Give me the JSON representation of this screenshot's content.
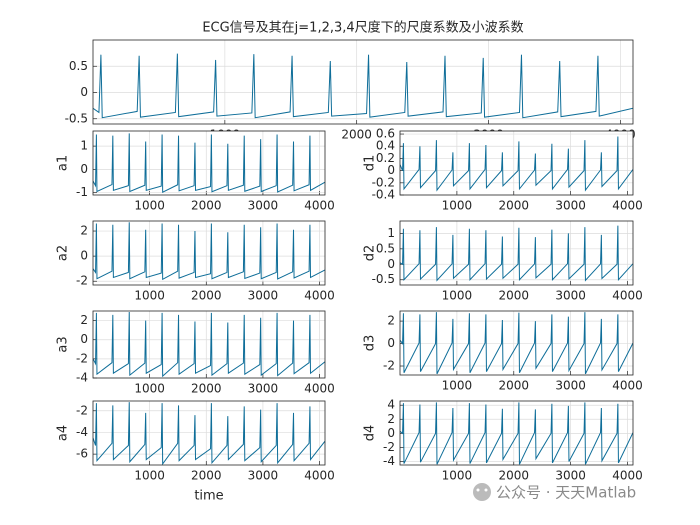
{
  "chart_data": [
    {
      "type": "line",
      "title": "ECG信号及其在j=1,2,3,4尺度下的尺度系数及小波系数",
      "color": "#0f6e99",
      "grid": true,
      "xlim": [
        0,
        4096
      ],
      "ylim": [
        -0.6,
        1
      ],
      "xticks": [
        1000,
        2000,
        3000,
        4000
      ],
      "yticks": [
        -0.5,
        0,
        0.5
      ],
      "x": [
        0,
        45,
        60,
        70,
        335,
        350,
        360,
        625,
        640,
        650,
        915,
        930,
        940,
        1205,
        1220,
        1230,
        1495,
        1510,
        1520,
        1785,
        1800,
        1810,
        2075,
        2090,
        2100,
        2365,
        2380,
        2390,
        2655,
        2670,
        2680,
        2945,
        2960,
        2970,
        3235,
        3250,
        3260,
        3525,
        3540,
        3550,
        3815,
        3830,
        3840,
        4096
      ],
      "values": [
        -0.3,
        -0.38,
        0.72,
        -0.48,
        -0.36,
        0.7,
        -0.47,
        -0.38,
        0.74,
        -0.46,
        -0.37,
        0.62,
        -0.45,
        -0.39,
        0.73,
        -0.48,
        -0.37,
        0.7,
        -0.46,
        -0.38,
        0.6,
        -0.45,
        -0.4,
        0.72,
        -0.47,
        -0.38,
        0.58,
        -0.45,
        -0.37,
        0.7,
        -0.46,
        -0.39,
        0.66,
        -0.47,
        -0.38,
        0.72,
        -0.48,
        -0.37,
        0.6,
        -0.46,
        -0.36,
        0.7,
        -0.45,
        -0.3
      ]
    },
    {
      "type": "line",
      "ylabel": "a1",
      "color": "#0f6e99",
      "grid": true,
      "xlim": [
        0,
        4096
      ],
      "ylim": [
        -1.1,
        1.65
      ],
      "xticks": [
        1000,
        2000,
        3000,
        4000
      ],
      "yticks": [
        -1,
        0,
        1
      ],
      "x": [
        0,
        45,
        60,
        70,
        335,
        350,
        360,
        625,
        640,
        650,
        915,
        930,
        940,
        1205,
        1220,
        1230,
        1495,
        1510,
        1520,
        1785,
        1800,
        1810,
        2075,
        2090,
        2100,
        2365,
        2380,
        2390,
        2655,
        2670,
        2680,
        2945,
        2960,
        2970,
        3235,
        3250,
        3260,
        3525,
        3540,
        3550,
        3815,
        3830,
        3840,
        4096
      ],
      "values": [
        -0.5,
        -0.7,
        1.5,
        -0.95,
        -0.65,
        1.45,
        -0.9,
        -0.7,
        1.55,
        -0.95,
        -0.68,
        1.2,
        -0.9,
        -0.72,
        1.5,
        -0.98,
        -0.66,
        1.45,
        -0.92,
        -0.7,
        1.15,
        -0.9,
        -0.74,
        1.5,
        -0.96,
        -0.7,
        1.1,
        -0.9,
        -0.68,
        1.45,
        -0.94,
        -0.72,
        1.3,
        -0.95,
        -0.7,
        1.5,
        -0.97,
        -0.68,
        1.2,
        -0.92,
        -0.66,
        1.45,
        -0.9,
        -0.55
      ]
    },
    {
      "type": "line",
      "ylabel": "d1",
      "color": "#0f6e99",
      "grid": true,
      "xlim": [
        0,
        4096
      ],
      "ylim": [
        -0.4,
        0.65
      ],
      "xticks": [
        1000,
        2000,
        3000,
        4000
      ],
      "yticks": [
        -0.4,
        -0.2,
        0,
        0.2,
        0.4,
        0.6
      ],
      "x": [
        0,
        45,
        60,
        70,
        335,
        350,
        360,
        625,
        640,
        650,
        915,
        930,
        940,
        1205,
        1220,
        1230,
        1495,
        1510,
        1520,
        1785,
        1800,
        1810,
        2075,
        2090,
        2100,
        2365,
        2380,
        2390,
        2655,
        2670,
        2680,
        2945,
        2960,
        2970,
        3235,
        3250,
        3260,
        3525,
        3540,
        3550,
        3815,
        3830,
        3840,
        4096
      ],
      "values": [
        0.1,
        0,
        0.45,
        -0.3,
        0.02,
        0.4,
        -0.28,
        0,
        0.5,
        -0.32,
        0.01,
        0.3,
        -0.25,
        0,
        0.45,
        -0.3,
        0.02,
        0.42,
        -0.28,
        0,
        0.3,
        -0.25,
        0,
        0.48,
        -0.3,
        0.01,
        0.28,
        -0.24,
        0,
        0.44,
        -0.3,
        0.02,
        0.36,
        -0.27,
        0,
        0.5,
        -0.32,
        0.01,
        0.3,
        -0.26,
        0,
        0.56,
        -0.3,
        0.02
      ]
    },
    {
      "type": "line",
      "ylabel": "a2",
      "color": "#0f6e99",
      "grid": true,
      "xlim": [
        0,
        4096
      ],
      "ylim": [
        -2.3,
        2.8
      ],
      "xticks": [
        1000,
        2000,
        3000,
        4000
      ],
      "yticks": [
        -2,
        0,
        2
      ],
      "x": [
        0,
        45,
        60,
        70,
        335,
        350,
        360,
        625,
        640,
        650,
        915,
        930,
        940,
        1205,
        1220,
        1230,
        1495,
        1510,
        1520,
        1785,
        1800,
        1810,
        2075,
        2090,
        2100,
        2365,
        2380,
        2390,
        2655,
        2670,
        2680,
        2945,
        2960,
        2970,
        3235,
        3250,
        3260,
        3525,
        3540,
        3550,
        3815,
        3830,
        3840,
        4096
      ],
      "values": [
        -1,
        -1.3,
        2.6,
        -1.8,
        -1.2,
        2.5,
        -1.7,
        -1.3,
        2.7,
        -1.8,
        -1.25,
        2.1,
        -1.7,
        -1.35,
        2.6,
        -1.85,
        -1.2,
        2.5,
        -1.75,
        -1.3,
        2.0,
        -1.7,
        -1.4,
        2.6,
        -1.8,
        -1.3,
        1.9,
        -1.7,
        -1.25,
        2.5,
        -1.78,
        -1.35,
        2.3,
        -1.8,
        -1.3,
        2.6,
        -1.82,
        -1.25,
        2.1,
        -1.74,
        -1.2,
        2.5,
        -1.7,
        -1.1
      ]
    },
    {
      "type": "line",
      "ylabel": "d2",
      "color": "#0f6e99",
      "grid": true,
      "xlim": [
        0,
        4096
      ],
      "ylim": [
        -0.67,
        1.4
      ],
      "xticks": [
        1000,
        2000,
        3000,
        4000
      ],
      "yticks": [
        -0.5,
        0,
        0.5,
        1
      ],
      "x": [
        0,
        45,
        60,
        70,
        335,
        350,
        360,
        625,
        640,
        650,
        915,
        930,
        940,
        1205,
        1220,
        1230,
        1495,
        1510,
        1520,
        1785,
        1800,
        1810,
        2075,
        2090,
        2100,
        2365,
        2380,
        2390,
        2655,
        2670,
        2680,
        2945,
        2960,
        2970,
        3235,
        3250,
        3260,
        3525,
        3540,
        3550,
        3815,
        3830,
        3840,
        4096
      ],
      "values": [
        0.05,
        0,
        1.15,
        -0.5,
        0.02,
        1.1,
        -0.48,
        0,
        1.2,
        -0.52,
        0.01,
        0.95,
        -0.45,
        0,
        1.15,
        -0.5,
        0.02,
        1.1,
        -0.48,
        0,
        0.9,
        -0.45,
        0,
        1.18,
        -0.5,
        0.01,
        0.88,
        -0.44,
        0,
        1.12,
        -0.5,
        0.02,
        1.0,
        -0.47,
        0,
        1.2,
        -0.52,
        0.01,
        0.95,
        -0.46,
        0,
        1.25,
        -0.5,
        0.02
      ]
    },
    {
      "type": "line",
      "ylabel": "a3",
      "color": "#0f6e99",
      "grid": true,
      "xlim": [
        0,
        4096
      ],
      "ylim": [
        -4,
        3
      ],
      "xticks": [
        1000,
        2000,
        3000,
        4000
      ],
      "yticks": [
        -4,
        -2,
        0,
        2
      ],
      "x": [
        0,
        45,
        60,
        70,
        335,
        350,
        360,
        625,
        640,
        650,
        915,
        930,
        940,
        1205,
        1220,
        1230,
        1495,
        1510,
        1520,
        1785,
        1800,
        1810,
        2075,
        2090,
        2100,
        2365,
        2380,
        2390,
        2655,
        2670,
        2680,
        2945,
        2960,
        2970,
        3235,
        3250,
        3260,
        3525,
        3540,
        3550,
        3815,
        3830,
        3840,
        4096
      ],
      "values": [
        -2,
        -2.5,
        2.8,
        -3.6,
        -2.4,
        2.6,
        -3.5,
        -2.5,
        2.9,
        -3.7,
        -2.45,
        2.0,
        -3.5,
        -2.6,
        2.8,
        -3.8,
        -2.4,
        2.6,
        -3.6,
        -2.5,
        1.9,
        -3.5,
        -2.7,
        2.8,
        -3.7,
        -2.5,
        1.8,
        -3.5,
        -2.45,
        2.6,
        -3.6,
        -2.6,
        2.3,
        -3.7,
        -2.5,
        2.8,
        -3.75,
        -2.45,
        2.0,
        -3.55,
        -2.4,
        2.6,
        -3.5,
        -2.3
      ]
    },
    {
      "type": "line",
      "ylabel": "d3",
      "color": "#0f6e99",
      "grid": true,
      "xlim": [
        0,
        4096
      ],
      "ylim": [
        -2.8,
        2.9
      ],
      "xticks": [
        1000,
        2000,
        3000,
        4000
      ],
      "yticks": [
        -2,
        0,
        2
      ],
      "x": [
        0,
        45,
        60,
        70,
        335,
        350,
        360,
        625,
        640,
        650,
        915,
        930,
        940,
        1205,
        1220,
        1230,
        1495,
        1510,
        1520,
        1785,
        1800,
        1810,
        2075,
        2090,
        2100,
        2365,
        2380,
        2390,
        2655,
        2670,
        2680,
        2945,
        2960,
        2970,
        3235,
        3250,
        3260,
        3525,
        3540,
        3550,
        3815,
        3830,
        3840,
        4096
      ],
      "values": [
        0.3,
        0,
        2.7,
        -2.6,
        0.05,
        2.6,
        -2.5,
        0,
        2.8,
        -2.7,
        0.05,
        2.2,
        -2.3,
        0,
        2.7,
        -2.6,
        0.05,
        2.6,
        -2.5,
        0,
        2.1,
        -2.3,
        0,
        2.75,
        -2.6,
        0.05,
        2.0,
        -2.2,
        0,
        2.6,
        -2.5,
        0.05,
        2.4,
        -2.4,
        0,
        2.8,
        -2.7,
        0.05,
        2.2,
        -2.35,
        0,
        2.6,
        -2.5,
        0.05
      ]
    },
    {
      "type": "line",
      "ylabel": "a4",
      "xlabel": "time",
      "color": "#0f6e99",
      "grid": true,
      "xlim": [
        0,
        4096
      ],
      "ylim": [
        -7,
        -1.1
      ],
      "xticks": [
        1000,
        2000,
        3000,
        4000
      ],
      "yticks": [
        -6,
        -4,
        -2
      ],
      "x": [
        0,
        45,
        60,
        70,
        335,
        350,
        360,
        625,
        640,
        650,
        915,
        930,
        940,
        1205,
        1220,
        1230,
        1495,
        1510,
        1520,
        1785,
        1800,
        1810,
        2075,
        2090,
        2100,
        2365,
        2380,
        2390,
        2655,
        2670,
        2680,
        2945,
        2960,
        2970,
        3235,
        3250,
        3260,
        3525,
        3540,
        3550,
        3815,
        3830,
        3840,
        4096
      ],
      "values": [
        -4.5,
        -5.2,
        -1.3,
        -6.6,
        -5.0,
        -1.5,
        -6.5,
        -5.2,
        -1.2,
        -6.7,
        -5.1,
        -2.2,
        -6.5,
        -5.4,
        -1.3,
        -6.9,
        -5.0,
        -1.5,
        -6.6,
        -5.2,
        -2.4,
        -6.5,
        -5.5,
        -1.3,
        -6.8,
        -5.2,
        -2.5,
        -6.5,
        -5.1,
        -1.6,
        -6.6,
        -5.4,
        -1.9,
        -6.7,
        -5.2,
        -1.3,
        -6.8,
        -5.1,
        -2.2,
        -6.6,
        -5.0,
        -1.6,
        -6.5,
        -4.8
      ]
    },
    {
      "type": "line",
      "ylabel": "d4",
      "color": "#0f6e99",
      "grid": true,
      "xlim": [
        0,
        4096
      ],
      "ylim": [
        -4.5,
        4.6
      ],
      "xticks": [
        1000,
        2000,
        3000,
        4000
      ],
      "yticks": [
        -4,
        -2,
        0,
        2,
        4
      ],
      "x": [
        0,
        45,
        60,
        70,
        335,
        350,
        360,
        625,
        640,
        650,
        915,
        930,
        940,
        1205,
        1220,
        1230,
        1495,
        1510,
        1520,
        1785,
        1800,
        1810,
        2075,
        2090,
        2100,
        2365,
        2380,
        2390,
        2655,
        2670,
        2680,
        2945,
        2960,
        2970,
        3235,
        3250,
        3260,
        3525,
        3540,
        3550,
        3815,
        3830,
        3840,
        4096
      ],
      "values": [
        0.3,
        0,
        4.3,
        -4.3,
        0.1,
        4.1,
        -4.1,
        0,
        4.4,
        -4.4,
        0.1,
        3.6,
        -3.8,
        0,
        4.3,
        -4.3,
        0.1,
        4.1,
        -4.2,
        0,
        3.5,
        -3.7,
        0,
        4.4,
        -4.4,
        0.1,
        3.4,
        -3.6,
        0,
        4.2,
        -4.2,
        0.1,
        3.9,
        -4.0,
        0,
        4.4,
        -4.4,
        0.1,
        3.6,
        -3.9,
        0,
        4.2,
        -4.2,
        0.1
      ]
    }
  ],
  "watermark": "公众号 · 天天Matlab"
}
